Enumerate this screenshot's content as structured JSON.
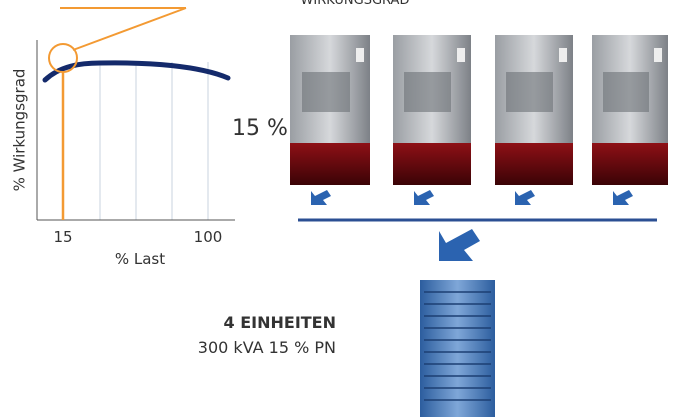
{
  "efficiency_chart": {
    "header": "WIRKUNGSGRAD",
    "y_axis_label": "% Wirkungsgrad",
    "x_tick_labels": [
      "15",
      "100"
    ],
    "x_axis_label": "% Last"
  },
  "load_label": "15 %",
  "summary": {
    "title": "4 EINHEITEN",
    "detail": "300 kVA 15 % PN"
  }
}
